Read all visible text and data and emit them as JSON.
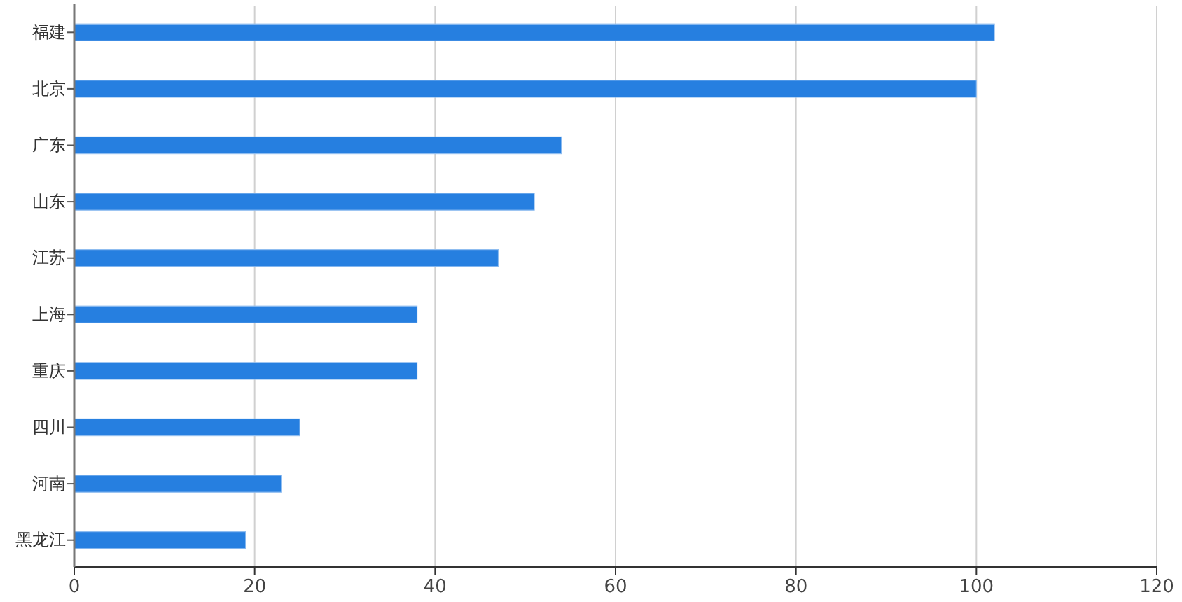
{
  "chart_data": {
    "type": "bar",
    "orientation": "horizontal",
    "categories": [
      "福建",
      "北京",
      "广东",
      "山东",
      "江苏",
      "上海",
      "重庆",
      "四川",
      "河南",
      "黑龙江"
    ],
    "values": [
      102,
      100,
      54,
      51,
      47,
      38,
      38,
      25,
      23,
      19
    ],
    "color": "#267fe0",
    "xlim": [
      0,
      120
    ],
    "xticks": [
      0,
      20,
      40,
      60,
      80,
      100,
      120
    ],
    "grid": "x"
  }
}
